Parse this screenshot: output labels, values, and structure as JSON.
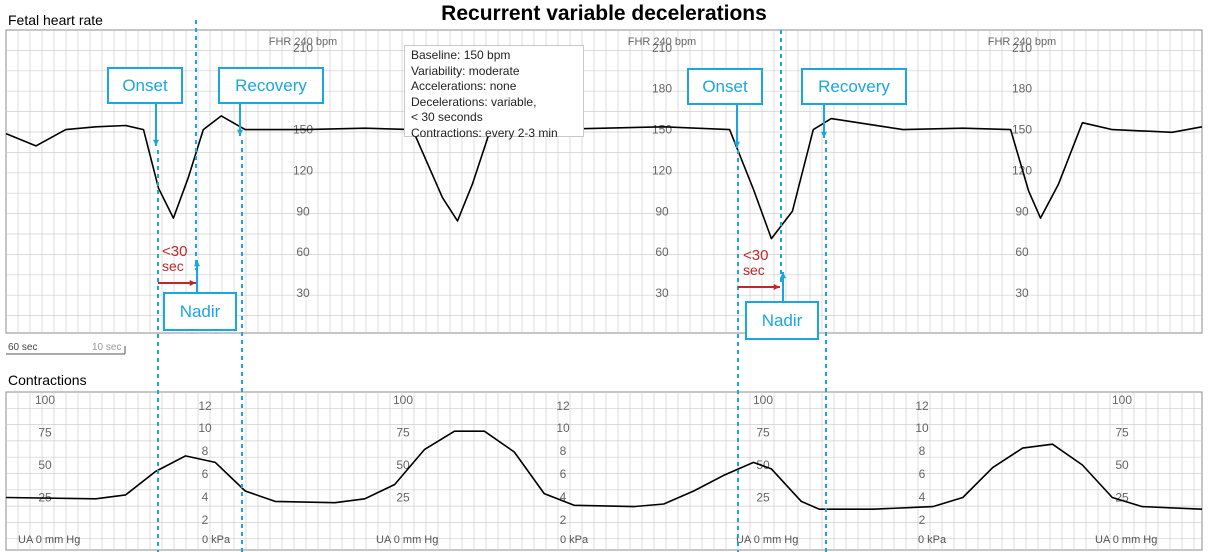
{
  "title": "Recurrent variable decelerations",
  "fhr_panel": {
    "label": "Fetal heart rate",
    "header_labels": [
      "FHR 240 bpm",
      "FHR 240 bpm",
      "FHR 240 bpm"
    ],
    "scale_labels": [
      "210",
      "180",
      "150",
      "120",
      "90",
      "60",
      "30"
    ],
    "ylim": [
      15,
      240
    ]
  },
  "ua_panel": {
    "label": "Contractions",
    "ua_ticks": [
      "100",
      "75",
      "50",
      "25"
    ],
    "kpa_ticks": [
      "12",
      "10",
      "8",
      "6",
      "4",
      "2"
    ],
    "ua_footer": "UA  0  mm Hg",
    "kpa_footer": "0 kPa",
    "ylim": [
      0,
      100
    ]
  },
  "time_scale": {
    "major": "60 sec",
    "minor": "10 sec"
  },
  "info_box": [
    "Baseline: 150 bpm",
    "Variability: moderate",
    "Accelerations: none",
    "Decelerations: variable,",
    "< 30 seconds",
    "Contractions: every 2-3 min"
  ],
  "annotations": {
    "onset": "Onset",
    "recovery": "Recovery",
    "nadir": "Nadir",
    "lt30_a": "<30",
    "lt30_b": "sec"
  },
  "colors": {
    "annotation": "#1ba6de",
    "arrow_red": "#c0272d",
    "trace": "#000000",
    "grid": "#bfbfbf"
  },
  "chart_data": [
    {
      "type": "line",
      "title": "Fetal heart rate",
      "ylabel": "FHR 240 bpm",
      "x_unit": "min",
      "ylim": [
        15,
        240
      ],
      "series": [
        {
          "points": [
            [
              0,
              147
            ],
            [
              0.5,
              138
            ],
            [
              1,
              150
            ],
            [
              1.5,
              152
            ],
            [
              2,
              153
            ],
            [
              2.3,
              150
            ],
            [
              2.55,
              107
            ],
            [
              2.8,
              85
            ],
            [
              3.05,
              115
            ],
            [
              3.3,
              150
            ],
            [
              3.6,
              160
            ],
            [
              4,
              150
            ],
            [
              5,
              150
            ],
            [
              6,
              151
            ],
            [
              6.8,
              150
            ],
            [
              7.3,
              100
            ],
            [
              7.55,
              83
            ],
            [
              7.8,
              110
            ],
            [
              8.1,
              150
            ],
            [
              9,
              150
            ],
            [
              10,
              151
            ],
            [
              11,
              152
            ],
            [
              12.1,
              150
            ],
            [
              12.5,
              106
            ],
            [
              12.8,
              70
            ],
            [
              13.15,
              90
            ],
            [
              13.5,
              150
            ],
            [
              13.8,
              158
            ],
            [
              15,
              150
            ],
            [
              16,
              151
            ],
            [
              16.8,
              150
            ],
            [
              17.1,
              105
            ],
            [
              17.3,
              85
            ],
            [
              17.6,
              110
            ],
            [
              18,
              155
            ],
            [
              18.5,
              150
            ],
            [
              19.5,
              148
            ],
            [
              20,
              152
            ]
          ]
        }
      ]
    },
    {
      "type": "line",
      "title": "Contractions",
      "ylabel": "UA mm Hg",
      "x_unit": "min",
      "ylim": [
        0,
        100
      ],
      "series": [
        {
          "points": [
            [
              0,
              25
            ],
            [
              1.5,
              24
            ],
            [
              2,
              27
            ],
            [
              2.5,
              45
            ],
            [
              3,
              57
            ],
            [
              3.5,
              52
            ],
            [
              4,
              30
            ],
            [
              4.5,
              22
            ],
            [
              5.5,
              21
            ],
            [
              6,
              24
            ],
            [
              6.5,
              35
            ],
            [
              7,
              62
            ],
            [
              7.5,
              76
            ],
            [
              8,
              76
            ],
            [
              8.5,
              60
            ],
            [
              9,
              28
            ],
            [
              9.5,
              19
            ],
            [
              10.5,
              18
            ],
            [
              11,
              20
            ],
            [
              11.5,
              30
            ],
            [
              12,
              42
            ],
            [
              12.5,
              52
            ],
            [
              12.8,
              47
            ],
            [
              13.3,
              22
            ],
            [
              13.6,
              16
            ],
            [
              14.5,
              16
            ],
            [
              15.5,
              18
            ],
            [
              16,
              25
            ],
            [
              16.5,
              48
            ],
            [
              17,
              63
            ],
            [
              17.5,
              66
            ],
            [
              18,
              50
            ],
            [
              18.5,
              25
            ],
            [
              19,
              18
            ],
            [
              20,
              16
            ]
          ]
        }
      ]
    }
  ]
}
